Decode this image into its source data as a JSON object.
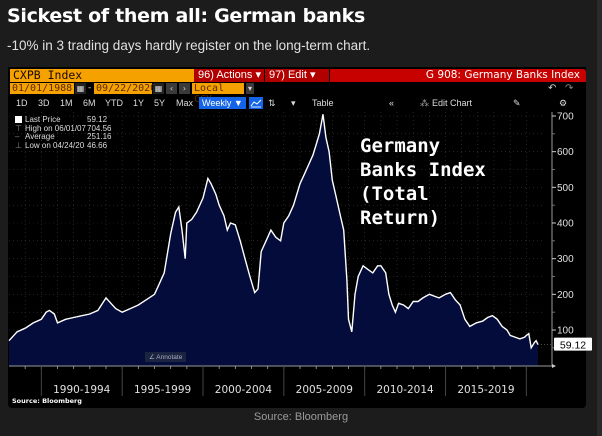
{
  "article": {
    "title": "Sickest of them all: German banks",
    "subtitle": "-10% in 3 trading days hardly register on the long-term chart.",
    "source_caption": "Source: Bloomberg"
  },
  "terminal": {
    "ticker": "CXPB Index",
    "actions_label": "96) Actions ▾",
    "edit_label": "97) Edit ▾",
    "function_title": "G 908: Germany Banks Index",
    "start_date": "01/01/1988",
    "end_date": "09/22/2020",
    "date_separator": "-",
    "currency": "Local CCY",
    "periods": [
      "1D",
      "3D",
      "1M",
      "6M",
      "YTD",
      "1Y",
      "5Y",
      "Max"
    ],
    "frequency": "Weekly ▼",
    "table_label": "Table",
    "collapse_label": "«",
    "edit_chart_label": "Edit Chart",
    "annotate_label": "Annotate",
    "source_label": "Source:  Bloomberg",
    "undo_icon": "↶",
    "redo_icon": "↷",
    "gear_icon": "⚙",
    "calendar_icon": "▦",
    "prev_icon": "‹",
    "next_icon": "›",
    "line_chart_icon": "📈",
    "edit_icon": "✎",
    "dropdown_icon": "▾"
  },
  "legend": {
    "items": [
      {
        "label": "Last Price",
        "value": "59.12"
      },
      {
        "label": "High on 06/01/07",
        "value": "704.56"
      },
      {
        "label": "Average",
        "value": "251.16"
      },
      {
        "label": "Low on 04/24/20",
        "value": "46.66"
      }
    ]
  },
  "chart_data": {
    "type": "area",
    "title": "Germany Banks Index (Total Return)",
    "annotation_lines": [
      "Germany",
      "Banks Index",
      "(Total",
      "Return)"
    ],
    "xlabel": "",
    "ylabel": "",
    "x_range": [
      1988.0,
      2020.72
    ],
    "ylim": [
      0,
      720
    ],
    "y_ticks": [
      100,
      200,
      300,
      400,
      500,
      600,
      700
    ],
    "x_tick_labels": [
      "1990-1994",
      "1995-1999",
      "2000-2004",
      "2005-2009",
      "2010-2014",
      "2015-2019"
    ],
    "x_tick_groups": [
      [
        1990,
        1995
      ],
      [
        1995,
        2000
      ],
      [
        2000,
        2005
      ],
      [
        2005,
        2010
      ],
      [
        2010,
        2015
      ],
      [
        2015,
        2020
      ]
    ],
    "last_price_label": "59.12",
    "last_price": 59.12,
    "grid": true,
    "legend_position": "top-left",
    "series": [
      {
        "name": "Last Price",
        "frequency": "weekly",
        "x": [
          1988.0,
          1988.5,
          1989.0,
          1989.5,
          1990.0,
          1990.3,
          1990.5,
          1990.8,
          1991.0,
          1991.5,
          1992.0,
          1992.5,
          1993.0,
          1993.5,
          1994.0,
          1994.3,
          1994.6,
          1995.0,
          1995.5,
          1996.0,
          1996.5,
          1997.0,
          1997.3,
          1997.6,
          1998.0,
          1998.3,
          1998.5,
          1998.7,
          1998.9,
          1999.0,
          1999.3,
          1999.6,
          2000.0,
          2000.3,
          2000.5,
          2000.8,
          2001.0,
          2001.3,
          2001.5,
          2001.7,
          2002.0,
          2002.3,
          2002.6,
          2002.9,
          2003.2,
          2003.4,
          2003.6,
          2003.9,
          2004.2,
          2004.5,
          2004.8,
          2005.0,
          2005.3,
          2005.6,
          2006.0,
          2006.3,
          2006.5,
          2006.8,
          2007.0,
          2007.2,
          2007.42,
          2007.6,
          2007.8,
          2008.0,
          2008.2,
          2008.5,
          2008.7,
          2008.9,
          2009.0,
          2009.2,
          2009.4,
          2009.6,
          2009.9,
          2010.2,
          2010.5,
          2010.8,
          2011.0,
          2011.3,
          2011.5,
          2011.7,
          2011.9,
          2012.1,
          2012.4,
          2012.7,
          2013.0,
          2013.3,
          2013.6,
          2014.0,
          2014.3,
          2014.6,
          2015.0,
          2015.3,
          2015.6,
          2015.9,
          2016.2,
          2016.5,
          2016.9,
          2017.3,
          2017.6,
          2017.9,
          2018.2,
          2018.5,
          2018.8,
          2019.0,
          2019.3,
          2019.6,
          2019.9,
          2020.0,
          2020.15,
          2020.3,
          2020.5,
          2020.6,
          2020.72
        ],
        "values": [
          70,
          95,
          105,
          120,
          130,
          150,
          155,
          145,
          120,
          130,
          135,
          140,
          145,
          155,
          190,
          175,
          160,
          150,
          160,
          170,
          185,
          200,
          230,
          260,
          370,
          430,
          445,
          380,
          300,
          400,
          410,
          430,
          470,
          525,
          510,
          480,
          450,
          420,
          380,
          400,
          395,
          350,
          300,
          250,
          205,
          215,
          320,
          350,
          380,
          360,
          350,
          400,
          420,
          450,
          510,
          540,
          560,
          590,
          620,
          650,
          705,
          640,
          600,
          520,
          480,
          420,
          380,
          240,
          130,
          95,
          200,
          250,
          280,
          270,
          260,
          280,
          280,
          260,
          200,
          170,
          150,
          175,
          170,
          160,
          180,
          180,
          190,
          200,
          195,
          190,
          200,
          205,
          185,
          170,
          130,
          110,
          120,
          125,
          135,
          140,
          130,
          110,
          100,
          85,
          80,
          75,
          80,
          85,
          90,
          50,
          65,
          70,
          59.12
        ]
      }
    ]
  }
}
